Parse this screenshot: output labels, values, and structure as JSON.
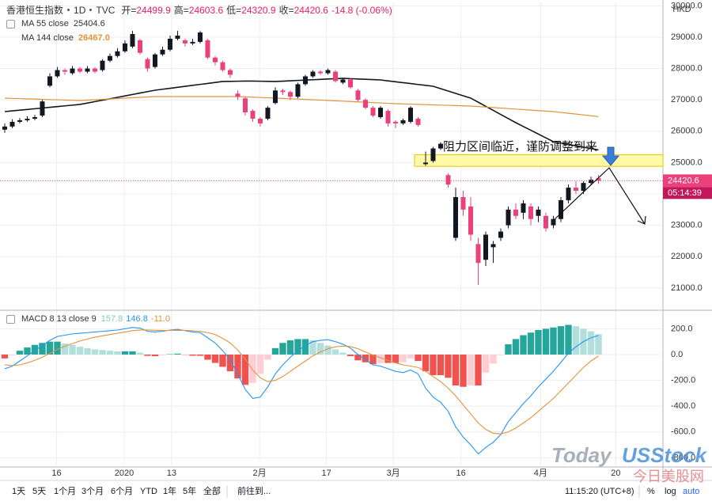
{
  "chart_data": [
    {
      "type": "candlestick",
      "title": "香港恒生指数",
      "interval": "1D",
      "source": "TVC",
      "ohlc_labels": [
        "开=",
        "高=",
        "低=",
        "收="
      ],
      "change_text": "-14.8 (-0.06%)",
      "currency": "HKD",
      "countdown": "05:14:39",
      "up_color": "#131722",
      "down_color": "#ec407a",
      "xlim": [
        -0.63,
        87.58
      ],
      "ylim": [
        20340,
        30110
      ],
      "yticks": [
        {
          "value": 21000,
          "label": "21000.0"
        },
        {
          "value": 22000,
          "label": "22000.0"
        },
        {
          "value": 23000,
          "label": "23000.0"
        },
        {
          "value": 24000,
          "label": "24000.0"
        },
        {
          "value": 25000,
          "label": "25000.0"
        },
        {
          "value": 26000,
          "label": "26000.0"
        },
        {
          "value": 27000,
          "label": "27000.0"
        },
        {
          "value": 28000,
          "label": "28000.0"
        },
        {
          "value": 29000,
          "label": "29000.0"
        },
        {
          "value": 30000,
          "label": "30000.0"
        }
      ],
      "grid": true,
      "candles": [
        [
          26050,
          26250,
          25950,
          26150
        ],
        [
          26150,
          26380,
          26100,
          26300
        ],
        [
          26300,
          26420,
          26250,
          26350
        ],
        [
          26350,
          26480,
          26300,
          26400
        ],
        [
          26400,
          26520,
          26350,
          26450
        ],
        [
          26500,
          27000,
          26450,
          26950
        ],
        [
          27450,
          27850,
          27400,
          27750
        ],
        [
          27750,
          28050,
          27700,
          27950
        ],
        [
          27950,
          28000,
          27800,
          27900
        ],
        [
          27850,
          28080,
          27800,
          28000
        ],
        [
          28000,
          28050,
          27850,
          27900
        ],
        [
          27900,
          28080,
          27850,
          28000
        ],
        [
          28000,
          28050,
          27850,
          27900
        ],
        [
          27950,
          28300,
          27900,
          28250
        ],
        [
          28250,
          28480,
          28200,
          28400
        ],
        [
          28400,
          28650,
          28350,
          28550
        ],
        [
          28550,
          28900,
          28500,
          28800
        ],
        [
          28700,
          29200,
          28650,
          29100
        ],
        [
          28900,
          28950,
          28450,
          28500
        ],
        [
          28300,
          28350,
          27900,
          28000
        ],
        [
          28050,
          28500,
          28000,
          28450
        ],
        [
          28450,
          28700,
          28400,
          28600
        ],
        [
          28600,
          29050,
          28550,
          28950
        ],
        [
          28950,
          29200,
          28900,
          29050
        ],
        [
          28900,
          28950,
          28700,
          28800
        ],
        [
          28800,
          28950,
          28750,
          28850
        ],
        [
          28850,
          29200,
          28800,
          29150
        ],
        [
          28900,
          28950,
          28300,
          28350
        ],
        [
          28350,
          28400,
          28100,
          28200
        ],
        [
          28200,
          28250,
          27900,
          27950
        ],
        [
          27950,
          28000,
          27700,
          27800
        ],
        [
          27200,
          27300,
          27000,
          27100
        ],
        [
          27050,
          27100,
          26500,
          26600
        ],
        [
          26650,
          26700,
          26300,
          26400
        ],
        [
          26400,
          26450,
          26150,
          26250
        ],
        [
          26400,
          26800,
          26350,
          26750
        ],
        [
          26900,
          27400,
          26850,
          27300
        ],
        [
          27300,
          27350,
          27150,
          27250
        ],
        [
          27250,
          27300,
          27000,
          27100
        ],
        [
          27100,
          27550,
          27050,
          27500
        ],
        [
          27500,
          27800,
          27450,
          27750
        ],
        [
          27750,
          27950,
          27700,
          27900
        ],
        [
          27900,
          27950,
          27800,
          27850
        ],
        [
          27850,
          28000,
          27800,
          27950
        ],
        [
          27900,
          27950,
          27550,
          27600
        ],
        [
          27550,
          27700,
          27500,
          27650
        ],
        [
          27650,
          27700,
          27350,
          27400
        ],
        [
          27300,
          27350,
          26950,
          27000
        ],
        [
          27000,
          27050,
          26700,
          26750
        ],
        [
          26750,
          26800,
          26450,
          26500
        ],
        [
          26450,
          26800,
          26400,
          26750
        ],
        [
          26650,
          26700,
          26150,
          26250
        ],
        [
          26300,
          26350,
          26100,
          26250
        ],
        [
          26250,
          26400,
          26200,
          26350
        ],
        [
          26300,
          26800,
          26250,
          26750
        ],
        [
          26400,
          26450,
          26150,
          26200
        ],
        [
          24950,
          25350,
          24900,
          25000
        ],
        [
          25050,
          25500,
          25000,
          25450
        ],
        [
          25450,
          25650,
          25400,
          25600
        ],
        [
          24600,
          24650,
          24200,
          24300
        ],
        [
          22600,
          24200,
          22500,
          23900
        ],
        [
          23900,
          24100,
          23300,
          23500
        ],
        [
          23600,
          23900,
          22500,
          22700
        ],
        [
          22400,
          22600,
          21100,
          21800
        ],
        [
          21900,
          22800,
          21700,
          22700
        ],
        [
          22300,
          22500,
          21800,
          22400
        ],
        [
          22600,
          22900,
          22500,
          22800
        ],
        [
          23000,
          23600,
          22900,
          23500
        ],
        [
          23500,
          23700,
          23200,
          23300
        ],
        [
          23400,
          23800,
          23200,
          23700
        ],
        [
          23600,
          23700,
          23000,
          23200
        ],
        [
          23300,
          23600,
          23100,
          23500
        ],
        [
          23300,
          23400,
          22800,
          22900
        ],
        [
          23000,
          23300,
          22900,
          23200
        ],
        [
          23200,
          23900,
          23100,
          23800
        ],
        [
          23800,
          24300,
          23700,
          24200
        ],
        [
          24200,
          24400,
          24000,
          24100
        ],
        [
          24100,
          24400,
          24000,
          24350
        ],
        [
          24350,
          24550,
          24300,
          24450
        ],
        [
          24499.9,
          24603.6,
          24320.9,
          24420.6
        ]
      ],
      "series": [
        {
          "name": "MA 55 close",
          "color": "#131722",
          "values": [
            26626,
            26650,
            26672,
            26695,
            26718,
            26740,
            26763,
            26786,
            26809,
            26831,
            26854,
            26899,
            26945,
            26990,
            27035,
            27081,
            27126,
            27172,
            27217,
            27263,
            27308,
            27339,
            27370,
            27401,
            27432,
            27463,
            27494,
            27524,
            27555,
            27586,
            27590,
            27595,
            27600,
            27600,
            27595,
            27590,
            27586,
            27597,
            27608,
            27620,
            27631,
            27642,
            27653,
            27665,
            27676,
            27687,
            27677,
            27667,
            27656,
            27646,
            27636,
            27607,
            27578,
            27549,
            27520,
            27491,
            27463,
            27434,
            27358,
            27283,
            27207,
            27132,
            27056,
            26926,
            26795,
            26665,
            26534,
            26404,
            26273,
            26152,
            26031,
            25910,
            25788,
            25667,
            25623,
            25579,
            25536,
            25492,
            25448,
            25404.6
          ]
        },
        {
          "name": "MA 144 close",
          "color": "#e0943a",
          "last_label": "26467.0",
          "values": [
            27056,
            27048,
            27041,
            27033,
            27026,
            27018,
            27010,
            27003,
            26995,
            26988,
            26980,
            26993,
            27005,
            27018,
            27030,
            27043,
            27056,
            27068,
            27081,
            27093,
            27106,
            27106,
            27106,
            27106,
            27106,
            27106,
            27106,
            27106,
            27106,
            27106,
            27106,
            27106,
            27096,
            27086,
            27076,
            27066,
            27056,
            27046,
            27035,
            27025,
            27015,
            27005,
            26994,
            26982,
            26971,
            26959,
            26948,
            26936,
            26925,
            26913,
            26902,
            26890,
            26879,
            26871,
            26864,
            26856,
            26848,
            26841,
            26833,
            26826,
            26818,
            26810,
            26803,
            26787,
            26771,
            26755,
            26739,
            26723,
            26707,
            26691,
            26674,
            26658,
            26642,
            26626,
            26600,
            26573,
            26547,
            26520,
            26494,
            26467
          ]
        }
      ],
      "zone": [
        24880,
        25250
      ],
      "annotation": "阻力区间临近，谨防调整到来"
    },
    {
      "type": "macd",
      "name": "MACD 8 13 close 9",
      "xlim": [
        -0.63,
        87.58
      ],
      "ylim": [
        -859,
        331
      ],
      "yticks": [
        {
          "value": 200,
          "label": "200.0"
        },
        {
          "value": 0,
          "label": "0.0"
        },
        {
          "value": -200,
          "label": "-200.0"
        },
        {
          "value": -400,
          "label": "-400.0"
        },
        {
          "value": -600,
          "label": "-600.0"
        },
        {
          "value": -800,
          "label": "-800.0"
        }
      ],
      "xticks": [
        {
          "value": 6.9,
          "label": "16"
        },
        {
          "value": 15.9,
          "label": "2020"
        },
        {
          "value": 22.2,
          "label": "13"
        },
        {
          "value": 33.9,
          "label": "2月"
        },
        {
          "value": 42.8,
          "label": "17"
        },
        {
          "value": 51.7,
          "label": "3月"
        },
        {
          "value": 60.7,
          "label": "16"
        },
        {
          "value": 71.3,
          "label": "4月"
        },
        {
          "value": 81.3,
          "label": "20"
        }
      ],
      "histogram": {
        "colors": [
          "#26a69a",
          "#b2dfdb",
          "#ef5350",
          "#ffcdd2"
        ],
        "values": [
          -30,
          -5,
          30,
          55,
          75,
          90,
          100,
          100,
          85,
          75,
          60,
          50,
          40,
          35,
          30,
          25,
          25,
          25,
          15,
          -10,
          -13,
          -6,
          3,
          7,
          -2,
          -9,
          -10,
          -40,
          -65,
          -95,
          -130,
          -185,
          -235,
          -220,
          -150,
          -40,
          50,
          90,
          110,
          120,
          120,
          110,
          90,
          70,
          40,
          15,
          -12,
          -45,
          -60,
          -75,
          -65,
          -65,
          -65,
          -60,
          -30,
          -50,
          -130,
          -160,
          -160,
          -180,
          -240,
          -250,
          -240,
          -240,
          -140,
          -70,
          -5,
          80,
          120,
          150,
          170,
          190,
          200,
          210,
          220,
          230,
          220,
          200,
          180,
          157.8
        ]
      },
      "series": [
        {
          "name": "MACD",
          "color": "#2196f3",
          "values": [
            -110,
            -90,
            -50,
            -10,
            30,
            70,
            110,
            140,
            150,
            160,
            165,
            170,
            175,
            180,
            185,
            190,
            200,
            210,
            205,
            180,
            175,
            180,
            190,
            195,
            185,
            175,
            170,
            130,
            90,
            30,
            -40,
            -150,
            -270,
            -340,
            -330,
            -250,
            -150,
            -80,
            -20,
            30,
            70,
            100,
            110,
            115,
            100,
            80,
            50,
            0,
            -40,
            -80,
            -90,
            -110,
            -130,
            -140,
            -120,
            -150,
            -260,
            -330,
            -370,
            -440,
            -560,
            -640,
            -700,
            -770,
            -720,
            -680,
            -620,
            -520,
            -450,
            -380,
            -320,
            -250,
            -190,
            -130,
            -60,
            10,
            60,
            100,
            130,
            146.8
          ]
        },
        {
          "name": "Signal",
          "color": "#e0943a",
          "last_label": "-11.0",
          "values": [
            -80,
            -85,
            -80,
            -65,
            -45,
            -20,
            10,
            40,
            65,
            85,
            105,
            120,
            135,
            145,
            155,
            165,
            175,
            185,
            190,
            190,
            188,
            186,
            187,
            188,
            187,
            184,
            180,
            170,
            155,
            125,
            90,
            35,
            -35,
            -120,
            -180,
            -210,
            -200,
            -170,
            -130,
            -90,
            -50,
            -10,
            20,
            45,
            60,
            65,
            62,
            45,
            20,
            -5,
            -25,
            -45,
            -65,
            -80,
            -90,
            -100,
            -130,
            -170,
            -210,
            -260,
            -320,
            -390,
            -460,
            -530,
            -580,
            -610,
            -615,
            -600,
            -570,
            -530,
            -490,
            -440,
            -390,
            -340,
            -280,
            -220,
            -160,
            -100,
            -50,
            -11
          ]
        }
      ],
      "grid": true
    }
  ],
  "toolbar": {
    "ranges": [
      "1天",
      "5天",
      "1个月",
      "3个月",
      "6个月",
      "YTD",
      "1年",
      "5年",
      "全部"
    ],
    "goto": "前往到...",
    "time": "11:15:20 (UTC+8)",
    "scale_options": [
      "%",
      "log",
      "auto"
    ]
  },
  "watermark": {
    "brand": [
      "Today",
      "USStock"
    ],
    "site": "今日美股网"
  }
}
